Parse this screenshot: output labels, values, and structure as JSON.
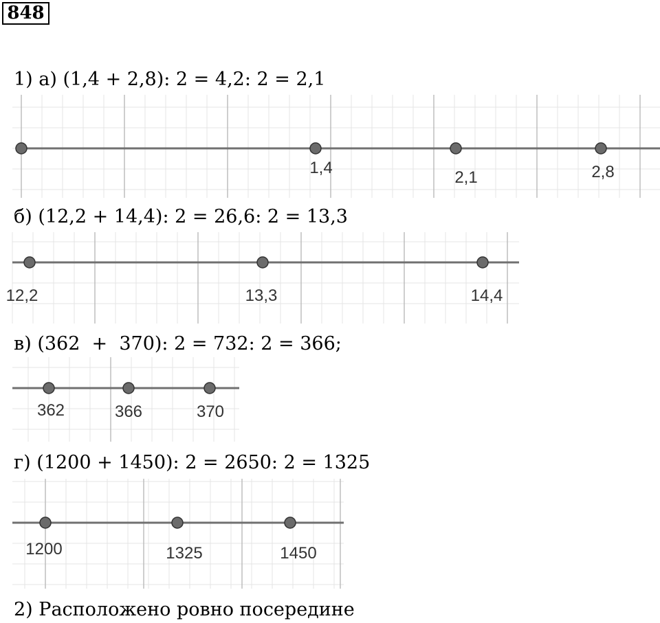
{
  "exercise_number": "848",
  "parts": [
    {
      "equation": "1) а) (1,4 + 2,8): 2 = 4,2: 2 = 2,1",
      "points": [
        {
          "label": "",
          "value": 0
        },
        {
          "label": "1,4",
          "value": 1.4
        },
        {
          "label": "2,1",
          "value": 2.1
        },
        {
          "label": "2,8",
          "value": 2.8
        }
      ]
    },
    {
      "equation": "б) (12,2 + 14,4): 2 = 26,6: 2 = 13,3",
      "points": [
        {
          "label": "12,2",
          "value": 12.2
        },
        {
          "label": "13,3",
          "value": 13.3
        },
        {
          "label": "14,4",
          "value": 14.4
        }
      ]
    },
    {
      "equation": "в) (362  +  370): 2 = 732: 2 = 366;",
      "points": [
        {
          "label": "362",
          "value": 362
        },
        {
          "label": "366",
          "value": 366
        },
        {
          "label": "370",
          "value": 370
        }
      ]
    },
    {
      "equation": "г) (1200 + 1450): 2 = 2650: 2 = 1325",
      "points": [
        {
          "label": "1200",
          "value": 1200
        },
        {
          "label": "1325",
          "value": 1325
        },
        {
          "label": "1450",
          "value": 1450
        }
      ]
    }
  ],
  "conclusion": "2) Расположено ровно посередине",
  "colors": {
    "axis": "#707070",
    "point_fill": "#6b6b6b",
    "grid_minor": "#e4e4e4",
    "grid_major": "#bdbdbd"
  }
}
